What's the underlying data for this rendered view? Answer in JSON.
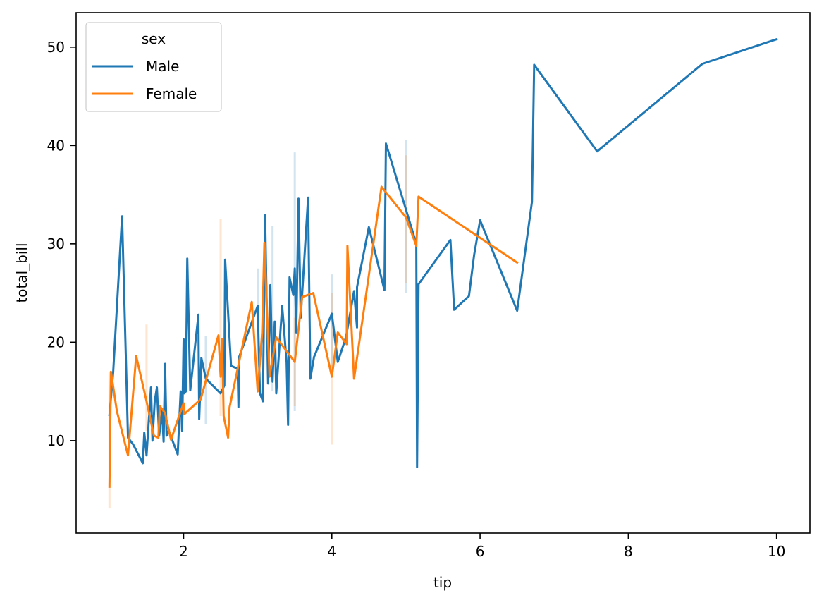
{
  "chart_data": {
    "type": "line",
    "xlabel": "tip",
    "ylabel": "total_bill",
    "xlim": [
      0.55,
      10.45
    ],
    "ylim": [
      0.6,
      53.5
    ],
    "xticks": [
      2,
      4,
      6,
      8,
      10
    ],
    "yticks": [
      10,
      20,
      30,
      40,
      50
    ],
    "grid": false,
    "legend": {
      "title": "sex",
      "placement": "top-left"
    },
    "colors": {
      "Male": "#1f77b4",
      "Female": "#ff7f0e"
    },
    "series": [
      {
        "name": "Male",
        "color": "#1f77b4",
        "points": [
          [
            1.0,
            12.6
          ],
          [
            1.05,
            17.0
          ],
          [
            1.17,
            32.8
          ],
          [
            1.25,
            10.3
          ],
          [
            1.32,
            9.6
          ],
          [
            1.45,
            7.7
          ],
          [
            1.47,
            10.8
          ],
          [
            1.5,
            8.5
          ],
          [
            1.56,
            15.4
          ],
          [
            1.58,
            10.0
          ],
          [
            1.61,
            14.0
          ],
          [
            1.64,
            15.4
          ],
          [
            1.67,
            10.5
          ],
          [
            1.71,
            13.0
          ],
          [
            1.73,
            9.9
          ],
          [
            1.75,
            17.8
          ],
          [
            1.77,
            10.5
          ],
          [
            1.8,
            11.0
          ],
          [
            1.92,
            8.6
          ],
          [
            1.96,
            15.0
          ],
          [
            1.98,
            11.0
          ],
          [
            2.0,
            20.3
          ],
          [
            2.01,
            14.8
          ],
          [
            2.03,
            15.0
          ],
          [
            2.05,
            28.5
          ],
          [
            2.09,
            15.1
          ],
          [
            2.2,
            22.8
          ],
          [
            2.21,
            12.2
          ],
          [
            2.24,
            18.4
          ],
          [
            2.3,
            16.3
          ],
          [
            2.5,
            14.8
          ],
          [
            2.55,
            15.6
          ],
          [
            2.56,
            28.4
          ],
          [
            2.64,
            17.6
          ],
          [
            2.73,
            17.3
          ],
          [
            2.74,
            13.4
          ],
          [
            2.75,
            18.5
          ],
          [
            3.0,
            23.7
          ],
          [
            3.03,
            14.8
          ],
          [
            3.07,
            14.0
          ],
          [
            3.1,
            32.9
          ],
          [
            3.14,
            15.8
          ],
          [
            3.17,
            25.8
          ],
          [
            3.2,
            16.0
          ],
          [
            3.23,
            22.1
          ],
          [
            3.25,
            14.8
          ],
          [
            3.33,
            23.7
          ],
          [
            3.39,
            18.0
          ],
          [
            3.41,
            11.6
          ],
          [
            3.43,
            26.6
          ],
          [
            3.48,
            24.8
          ],
          [
            3.5,
            27.5
          ],
          [
            3.52,
            21.0
          ],
          [
            3.55,
            34.6
          ],
          [
            3.58,
            22.5
          ],
          [
            3.68,
            34.7
          ],
          [
            3.71,
            16.3
          ],
          [
            3.76,
            18.5
          ],
          [
            4.0,
            22.9
          ],
          [
            4.08,
            18.0
          ],
          [
            4.19,
            20.5
          ],
          [
            4.3,
            25.2
          ],
          [
            4.34,
            21.5
          ],
          [
            4.34,
            25.6
          ],
          [
            4.5,
            31.7
          ],
          [
            4.71,
            25.3
          ],
          [
            4.73,
            40.2
          ],
          [
            5.0,
            33.5
          ],
          [
            5.14,
            30.0
          ],
          [
            5.15,
            7.3
          ],
          [
            5.17,
            25.9
          ],
          [
            5.6,
            30.4
          ],
          [
            5.65,
            23.3
          ],
          [
            5.85,
            24.7
          ],
          [
            5.92,
            28.9
          ],
          [
            6.0,
            32.4
          ],
          [
            6.5,
            23.2
          ],
          [
            6.7,
            34.3
          ],
          [
            6.73,
            48.2
          ],
          [
            7.58,
            39.4
          ],
          [
            9.0,
            48.3
          ],
          [
            10.0,
            50.8
          ]
        ]
      },
      {
        "name": "Female",
        "color": "#ff7f0e",
        "points": [
          [
            1.0,
            5.3
          ],
          [
            1.02,
            17.0
          ],
          [
            1.1,
            13.0
          ],
          [
            1.25,
            8.5
          ],
          [
            1.36,
            18.6
          ],
          [
            1.5,
            14.0
          ],
          [
            1.6,
            10.5
          ],
          [
            1.66,
            10.3
          ],
          [
            1.68,
            13.5
          ],
          [
            1.75,
            12.8
          ],
          [
            1.83,
            10.1
          ],
          [
            1.92,
            12.1
          ],
          [
            2.0,
            13.8
          ],
          [
            2.01,
            12.7
          ],
          [
            2.23,
            14.2
          ],
          [
            2.47,
            20.7
          ],
          [
            2.5,
            16.5
          ],
          [
            2.52,
            20.3
          ],
          [
            2.54,
            12.5
          ],
          [
            2.6,
            10.3
          ],
          [
            2.62,
            13.4
          ],
          [
            2.92,
            24.1
          ],
          [
            3.0,
            15.0
          ],
          [
            3.06,
            21.0
          ],
          [
            3.09,
            30.1
          ],
          [
            3.16,
            16.5
          ],
          [
            3.25,
            20.5
          ],
          [
            3.5,
            18.0
          ],
          [
            3.6,
            24.6
          ],
          [
            3.75,
            25.0
          ],
          [
            4.0,
            16.5
          ],
          [
            4.08,
            21.0
          ],
          [
            4.2,
            19.8
          ],
          [
            4.21,
            29.8
          ],
          [
            4.3,
            16.3
          ],
          [
            4.67,
            35.8
          ],
          [
            5.0,
            32.7
          ],
          [
            5.14,
            29.8
          ],
          [
            5.17,
            34.8
          ],
          [
            6.5,
            28.1
          ]
        ]
      }
    ],
    "ci_bands": [
      {
        "series": "Male",
        "x": 3.5,
        "ylow": 13.0,
        "yhigh": 39.3
      },
      {
        "series": "Male",
        "x": 5.0,
        "ylow": 25.0,
        "yhigh": 40.6
      },
      {
        "series": "Male",
        "x": 3.2,
        "ylow": 15.0,
        "yhigh": 31.8
      },
      {
        "series": "Male",
        "x": 4.0,
        "ylow": 17.0,
        "yhigh": 26.9
      },
      {
        "series": "Male",
        "x": 2.3,
        "ylow": 11.7,
        "yhigh": 20.6
      },
      {
        "series": "Male",
        "x": 3.0,
        "ylow": 15.0,
        "yhigh": 27.5
      },
      {
        "series": "Female",
        "x": 1.0,
        "ylow": 3.1,
        "yhigh": 17.0
      },
      {
        "series": "Female",
        "x": 1.5,
        "ylow": 11.0,
        "yhigh": 21.8
      },
      {
        "series": "Female",
        "x": 2.5,
        "ylow": 12.5,
        "yhigh": 32.5
      },
      {
        "series": "Female",
        "x": 4.0,
        "ylow": 9.6,
        "yhigh": 25.0
      },
      {
        "series": "Female",
        "x": 5.0,
        "ylow": 26.0,
        "yhigh": 39.0
      },
      {
        "series": "Female",
        "x": 3.5,
        "ylow": 13.5,
        "yhigh": 22.5
      }
    ]
  }
}
